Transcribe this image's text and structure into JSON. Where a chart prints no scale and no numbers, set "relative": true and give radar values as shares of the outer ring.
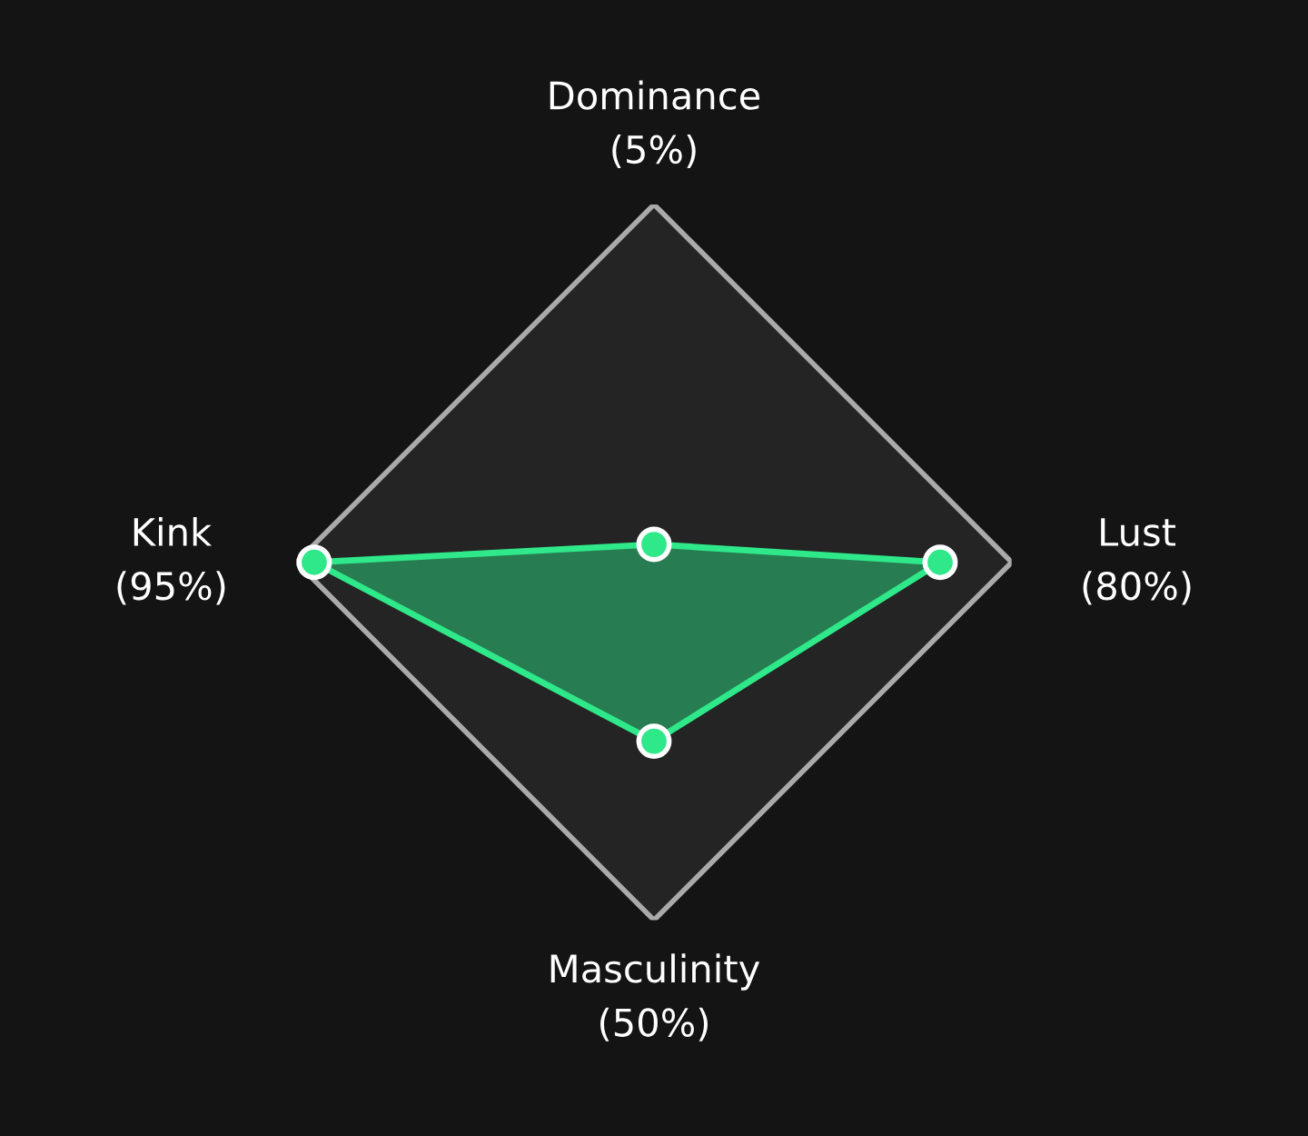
{
  "chart_data": {
    "type": "radar",
    "categories": [
      "Dominance\n(5%)",
      "Lust\n(80%)",
      "Masculinity\n(50%)",
      "Kink\n(95%)"
    ],
    "series": [
      {
        "color": "#2ee88a",
        "values": [
          0.05,
          0.8,
          0.5,
          0.95
        ]
      }
    ],
    "relative": true,
    "marker": "circle"
  }
}
